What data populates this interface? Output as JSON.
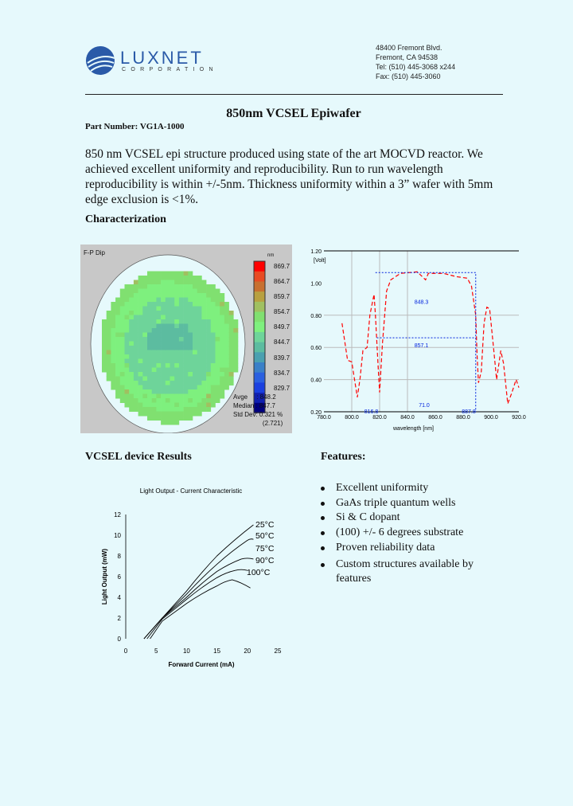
{
  "header": {
    "company": "LUXNET",
    "company_sub": "CORPORATION",
    "address": [
      "48400 Fremont Blvd.",
      "Fremont, CA 94538",
      "Tel: (510) 445-3068 x244",
      "Fax: (510) 445-3060"
    ],
    "brand_color": "#2a5aa8"
  },
  "title": "850nm VCSEL Epiwafer",
  "part_number": "Part Number:  VG1A-1000",
  "intro": "850 nm VCSEL epi structure produced using state of the art MOCVD reactor. We achieved excellent uniformity and reproducibility. Run to run wavelength reproducibility is within +/-5nm. Thickness uniformity within a 3” wafer with 5mm edge exclusion is <1%.",
  "characterization_heading": "Characterization",
  "wafer_map": {
    "label": "F-P Dip",
    "unit": "nm",
    "scale": [
      "869.7",
      "864.7",
      "859.7",
      "854.7",
      "849.7",
      "844.7",
      "839.7",
      "834.7",
      "829.7"
    ],
    "scale_colors": [
      "#ff0000",
      "#e84a22",
      "#c87030",
      "#b8a040",
      "#a0c060",
      "#80e070",
      "#7ef07e",
      "#6ed49a",
      "#5cbca0",
      "#4aa0b0",
      "#3a80c8",
      "#2a60e0",
      "#1a40e0",
      "#1020b0",
      "#000080"
    ],
    "stats": {
      "avg": "Avge     : 848.2",
      "median": "Median : 847.7",
      "std": "Std Dev: 0.321 %",
      "std2": "(2.721)"
    }
  },
  "chart_data": [
    {
      "type": "line",
      "title": "",
      "xlabel": "wavelength [nm]",
      "ylabel": "[Volt]",
      "xlim": [
        780,
        920
      ],
      "ylim": [
        0.2,
        1.2
      ],
      "xticks": [
        "780.0",
        "800.0",
        "820.0",
        "840.0",
        "860.0",
        "880.0",
        "900.0",
        "920.0"
      ],
      "yticks": [
        "1.20",
        "1.00",
        "0.80",
        "0.60",
        "0.40",
        "0.20"
      ],
      "series": [
        {
          "color": "#ff0000",
          "x": [
            793,
            797,
            800,
            804,
            806,
            808,
            811,
            813,
            816,
            817,
            819,
            820,
            822,
            825,
            828,
            835,
            847,
            853,
            855,
            866,
            875,
            883,
            886,
            889,
            890,
            891,
            893,
            895,
            897,
            899,
            902,
            904,
            907,
            909,
            912,
            915,
            918,
            920
          ],
          "y": [
            0.75,
            0.52,
            0.51,
            0.29,
            0.41,
            0.58,
            0.6,
            0.8,
            0.93,
            0.8,
            0.47,
            0.32,
            0.62,
            0.95,
            1.02,
            1.06,
            1.07,
            1.02,
            1.06,
            1.06,
            1.04,
            1.03,
            0.98,
            0.8,
            0.55,
            0.38,
            0.45,
            0.75,
            0.85,
            0.84,
            0.58,
            0.4,
            0.58,
            0.5,
            0.25,
            0.32,
            0.4,
            0.35
          ]
        }
      ],
      "annotations": [
        "848.3",
        "857.1",
        "816.8",
        "71.0",
        "887.8"
      ]
    },
    {
      "type": "line",
      "title": "Light Output - Current Characteristic",
      "xlabel": "Forward Current (mA)",
      "ylabel": "Light Output (mW)",
      "xlim": [
        0,
        25
      ],
      "ylim": [
        0,
        12
      ],
      "xticks": [
        "0",
        "5",
        "10",
        "15",
        "20",
        "25"
      ],
      "yticks": [
        "0",
        "2",
        "4",
        "6",
        "8",
        "10",
        "12"
      ],
      "series": [
        {
          "name": "25°C",
          "x": [
            3,
            6,
            10,
            15,
            21
          ],
          "y": [
            0,
            2,
            4.6,
            8.0,
            11.0
          ]
        },
        {
          "name": "50°C",
          "x": [
            3,
            6,
            10,
            15,
            20,
            21
          ],
          "y": [
            0,
            2,
            4.3,
            7.2,
            9.5,
            9.6
          ]
        },
        {
          "name": "75°C",
          "x": [
            3,
            6,
            10,
            15,
            19,
            21
          ],
          "y": [
            0,
            2,
            4.0,
            6.5,
            7.7,
            7.7
          ]
        },
        {
          "name": "90°C",
          "x": [
            3.5,
            6,
            10,
            15,
            18,
            20
          ],
          "y": [
            0,
            1.9,
            3.8,
            5.9,
            6.6,
            6.6
          ]
        },
        {
          "name": "100°C",
          "x": [
            4,
            6,
            10,
            15,
            17.5,
            20.5
          ],
          "y": [
            0,
            1.7,
            3.4,
            5.1,
            5.7,
            4.9
          ]
        }
      ]
    }
  ],
  "results_heading": "VCSEL device Results",
  "features_heading": "Features:",
  "features": [
    "Excellent uniformity",
    "GaAs triple quantum wells",
    " Si & C dopant",
    "(100) +/- 6 degrees substrate",
    "Proven reliability data",
    "Custom structures available by features"
  ]
}
